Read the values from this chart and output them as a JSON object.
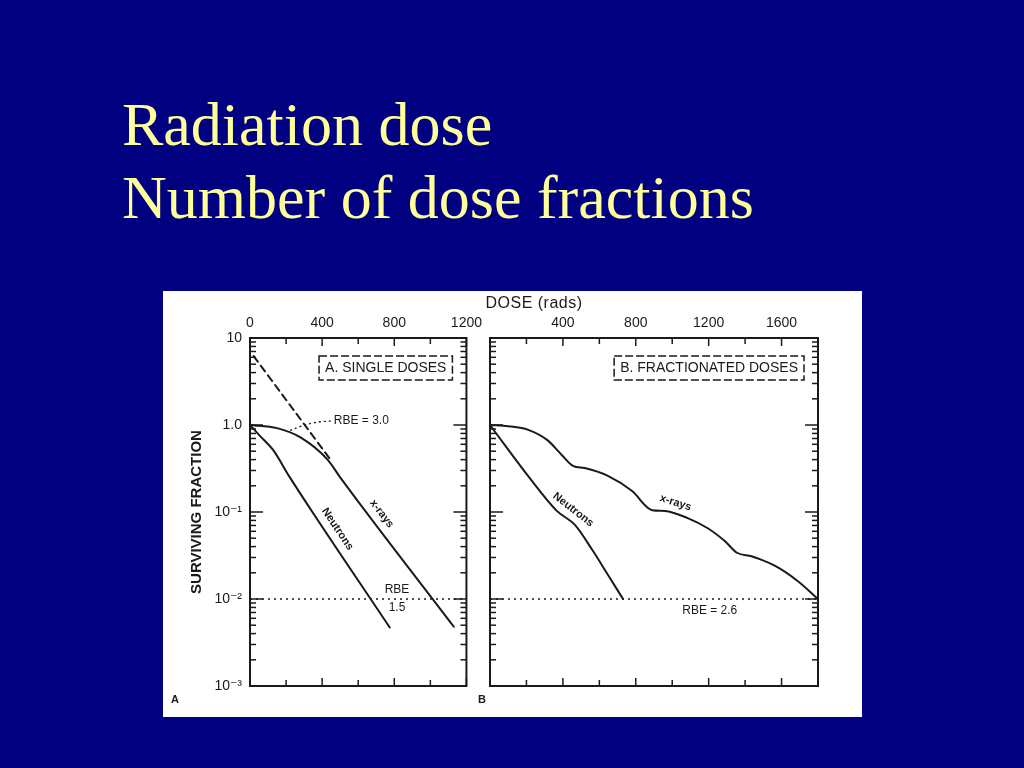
{
  "chart_data": [
    {
      "type": "line",
      "title": "Radiation dose",
      "subtitle": "Number of dose fractions",
      "xlabel": "DOSE (rads)",
      "ylabel": "SURVIVING FRACTION",
      "annotations": [
        "A. SINGLE DOSES",
        "A",
        {
          "text": "RBE = 3.0",
          "x": 215,
          "y": 0.85
        },
        {
          "text": "RBE\n1.5",
          "x": 815,
          "y": 0.01
        }
      ],
      "xlim": [
        0,
        1200
      ],
      "xticks": [
        0,
        {
          "value": 200,
          "label": null
        },
        400,
        {
          "value": 600,
          "label": null
        },
        800,
        {
          "value": 1000,
          "label": null
        },
        1200
      ],
      "ylim": [
        0.001,
        10
      ],
      "yticks": [
        {
          "value": 0.001,
          "label": "10⁻³"
        },
        {
          "value": 0.002,
          "label": null
        },
        {
          "value": 0.003,
          "label": null
        },
        {
          "value": 0.004,
          "label": null
        },
        {
          "value": 0.005,
          "label": null
        },
        {
          "value": 0.006,
          "label": null
        },
        {
          "value": 0.007,
          "label": null
        },
        {
          "value": 0.008,
          "label": null
        },
        {
          "value": 0.009,
          "label": null
        },
        {
          "value": 0.01,
          "label": "10⁻²"
        },
        {
          "value": 0.02,
          "label": null
        },
        {
          "value": 0.03,
          "label": null
        },
        {
          "value": 0.04,
          "label": null
        },
        {
          "value": 0.05,
          "label": null
        },
        {
          "value": 0.06,
          "label": null
        },
        {
          "value": 0.07,
          "label": null
        },
        {
          "value": 0.08,
          "label": null
        },
        {
          "value": 0.09,
          "label": null
        },
        {
          "value": 0.1,
          "label": "10⁻¹"
        },
        {
          "value": 0.2,
          "label": null
        },
        {
          "value": 0.3,
          "label": null
        },
        {
          "value": 0.4,
          "label": null
        },
        {
          "value": 0.5,
          "label": null
        },
        {
          "value": 0.6,
          "label": null
        },
        {
          "value": 0.7,
          "label": null
        },
        {
          "value": 0.8,
          "label": null
        },
        {
          "value": 0.9,
          "label": null
        },
        {
          "value": 1,
          "label": "1.0"
        },
        {
          "value": 2,
          "label": null
        },
        {
          "value": 3,
          "label": null
        },
        {
          "value": 4,
          "label": null
        },
        {
          "value": 5,
          "label": null
        },
        {
          "value": 6,
          "label": null
        },
        {
          "value": 7,
          "label": null
        },
        {
          "value": 8,
          "label": null
        },
        {
          "value": 9,
          "label": null
        },
        10
      ],
      "log": "y",
      "ref_lines": [
        {
          "axis": "y",
          "value": 0.01,
          "line_style": "dotted"
        }
      ],
      "series": [
        {
          "name": "x-rays",
          "color": "#1a1a1a",
          "x": [
            0,
            150,
            280,
            430,
            500,
            1130
          ],
          "values": [
            1.0,
            0.92,
            0.72,
            0.4,
            0.25,
            0.0048
          ]
        },
        {
          "name": "Neutrons",
          "color": "#1a1a1a",
          "x": [
            0,
            55,
            127,
            221,
            775
          ],
          "values": [
            1.0,
            0.75,
            0.52,
            0.25,
            0.0047
          ]
        },
        {
          "color": "#1a1a1a",
          "line_style": "dashed",
          "x": [
            20,
            450
          ],
          "values": [
            6.2,
            0.39
          ]
        }
      ]
    },
    {
      "type": "line",
      "annotations": [
        "B. FRACTIONATED DOSES",
        "B",
        "RBE = 2.6"
      ],
      "xlim": [
        0,
        1800
      ],
      "xticks": [
        {
          "value": 200,
          "label": null
        },
        400,
        {
          "value": 600,
          "label": null
        },
        800,
        {
          "value": 1000,
          "label": null
        },
        1200,
        {
          "value": 1400,
          "label": null
        },
        1600
      ],
      "ylim": [
        0.001,
        10
      ],
      "yticks": [
        {
          "value": 0.001,
          "label": null
        },
        {
          "value": 0.002,
          "label": null
        },
        {
          "value": 0.003,
          "label": null
        },
        {
          "value": 0.004,
          "label": null
        },
        {
          "value": 0.005,
          "label": null
        },
        {
          "value": 0.006,
          "label": null
        },
        {
          "value": 0.007,
          "label": null
        },
        {
          "value": 0.008,
          "label": null
        },
        {
          "value": 0.009,
          "label": null
        },
        {
          "value": 0.01,
          "label": null
        },
        {
          "value": 0.02,
          "label": null
        },
        {
          "value": 0.03,
          "label": null
        },
        {
          "value": 0.04,
          "label": null
        },
        {
          "value": 0.05,
          "label": null
        },
        {
          "value": 0.06,
          "label": null
        },
        {
          "value": 0.07,
          "label": null
        },
        {
          "value": 0.08,
          "label": null
        },
        {
          "value": 0.09,
          "label": null
        },
        {
          "value": 0.1,
          "label": null
        },
        {
          "value": 0.2,
          "label": null
        },
        {
          "value": 0.3,
          "label": null
        },
        {
          "value": 0.4,
          "label": null
        },
        {
          "value": 0.5,
          "label": null
        },
        {
          "value": 0.6,
          "label": null
        },
        {
          "value": 0.7,
          "label": null
        },
        {
          "value": 0.8,
          "label": null
        },
        {
          "value": 0.9,
          "label": null
        },
        {
          "value": 1,
          "label": null
        },
        {
          "value": 2,
          "label": null
        },
        {
          "value": 3,
          "label": null
        },
        {
          "value": 4,
          "label": null
        },
        {
          "value": 5,
          "label": null
        },
        {
          "value": 6,
          "label": null
        },
        {
          "value": 7,
          "label": null
        },
        {
          "value": 8,
          "label": null
        },
        {
          "value": 9,
          "label": null
        },
        {
          "value": 10,
          "label": null
        }
      ],
      "log": "y",
      "tick_labels": "x",
      "ref_lines": [
        {
          "axis": "y",
          "value": 0.01,
          "line_style": "dotted"
        }
      ],
      "series": [
        {
          "name": "x-rays",
          "color": "#1a1a1a",
          "x": [
            0,
            100,
            210,
            315,
            395,
            455,
            520,
            647,
            780,
            890,
            960,
            1085,
            1195,
            1290,
            1355,
            1435,
            1565,
            1690,
            1800
          ],
          "values": [
            1.0,
            0.97,
            0.88,
            0.67,
            0.45,
            0.34,
            0.32,
            0.26,
            0.174,
            0.105,
            0.103,
            0.085,
            0.065,
            0.046,
            0.034,
            0.031,
            0.024,
            0.016,
            0.01
          ]
        },
        {
          "name": "Neutrons",
          "color": "#1a1a1a",
          "x": [
            0,
            100,
            215,
            367,
            466,
            560,
            647,
            730
          ],
          "values": [
            1.0,
            0.52,
            0.25,
            0.103,
            0.071,
            0.037,
            0.019,
            0.01
          ]
        }
      ]
    }
  ]
}
